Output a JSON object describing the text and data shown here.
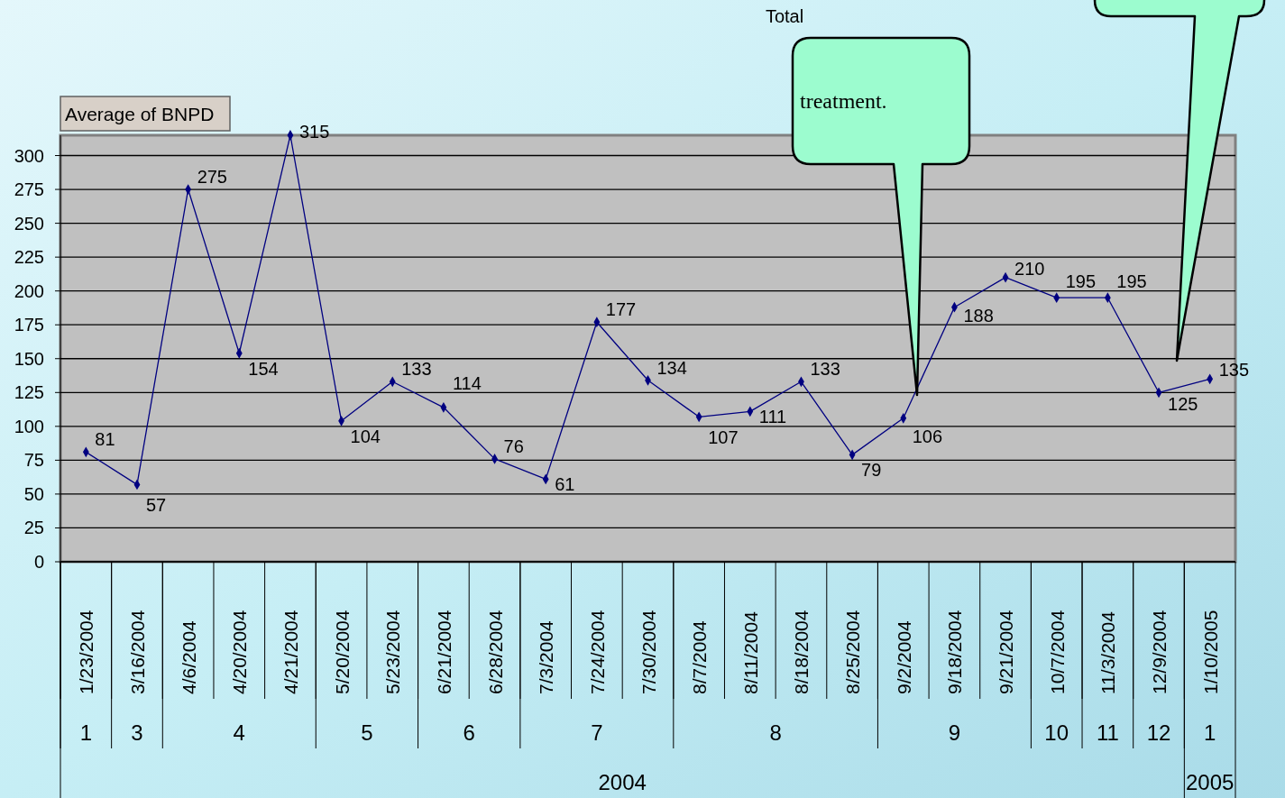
{
  "chart_data": {
    "type": "line",
    "title": "Total",
    "ylabel": "Average of BNPD",
    "categories": [
      "1/23/2004",
      "3/16/2004",
      "4/6/2004",
      "4/20/2004",
      "4/21/2004",
      "5/20/2004",
      "5/23/2004",
      "6/21/2004",
      "6/28/2004",
      "7/3/2004",
      "7/24/2004",
      "7/30/2004",
      "8/7/2004",
      "8/11/2004",
      "8/18/2004",
      "8/25/2004",
      "9/2/2004",
      "9/18/2004",
      "9/21/2004",
      "10/7/2004",
      "11/3/2004",
      "12/9/2004",
      "1/10/2005"
    ],
    "series": [
      {
        "color": "#000080",
        "values": [
          81,
          57,
          275,
          154,
          315,
          104,
          133,
          114,
          76,
          61,
          177,
          134,
          107,
          111,
          133,
          79,
          106,
          188,
          210,
          195,
          195,
          125,
          135
        ]
      }
    ],
    "ylim": [
      0,
      315
    ],
    "yticks": [
      0,
      25,
      50,
      75,
      100,
      125,
      150,
      175,
      200,
      225,
      250,
      275,
      300
    ],
    "grid": "y",
    "marker": "diamond",
    "line_style": "solid",
    "data_labels": true,
    "annotations": [
      "treatment.",
      "1",
      "3",
      "4",
      "5",
      "6",
      "7",
      "8",
      "9",
      "10",
      "11",
      "12",
      "1",
      "2004",
      "2005"
    ]
  }
}
